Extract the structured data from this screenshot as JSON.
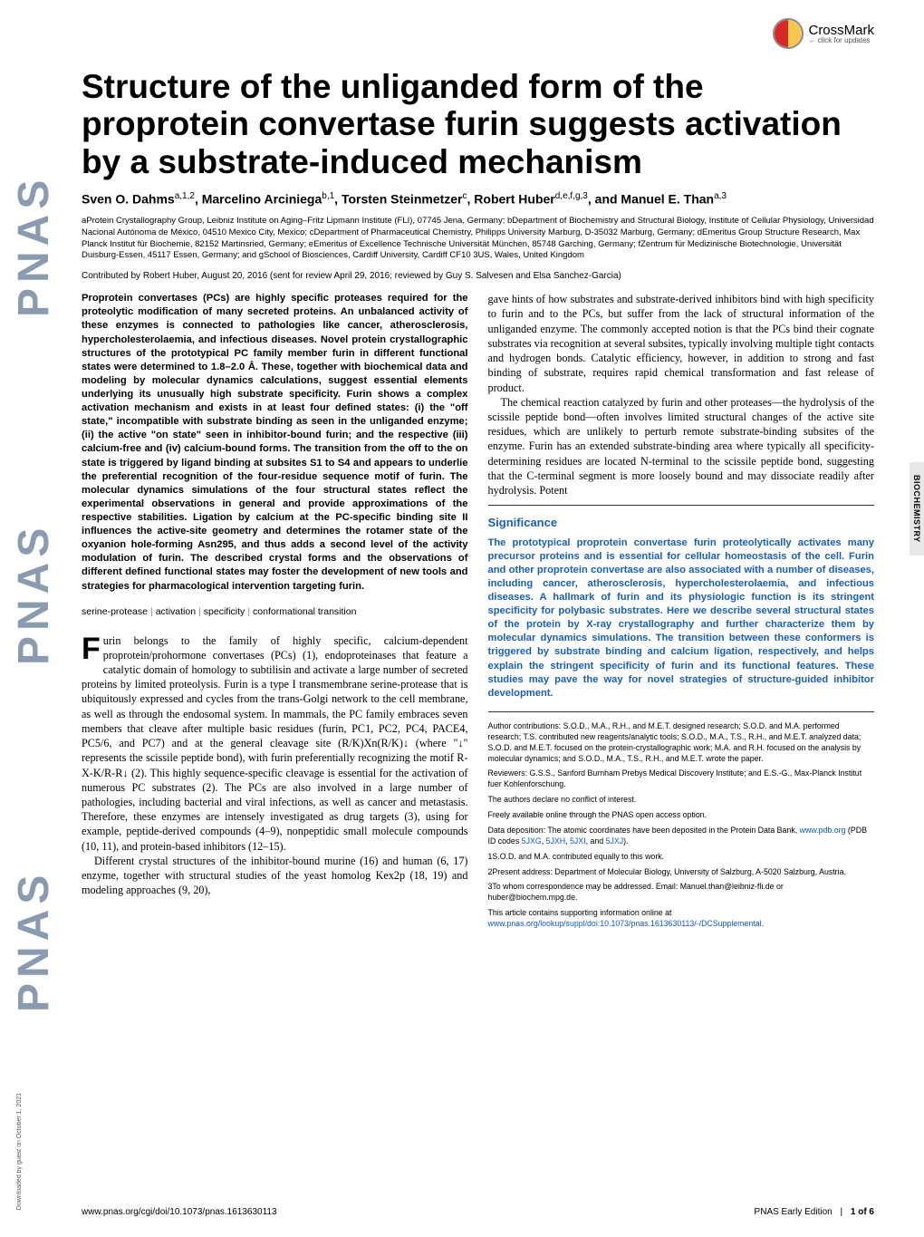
{
  "crossmark": {
    "title": "CrossMark",
    "subtitle": "← click for updates"
  },
  "sidebar_logo": "PNAS",
  "title": "Structure of the unliganded form of the proprotein convertase furin suggests activation by a substrate-induced mechanism",
  "authors_html": "Sven O. Dahms<sup>a,1,2</sup>, Marcelino Arciniega<sup>b,1</sup>, Torsten Steinmetzer<sup>c</sup>, Robert Huber<sup>d,e,f,g,3</sup>, and Manuel E. Than<sup>a,3</sup>",
  "affiliations": "aProtein Crystallography Group, Leibniz Institute on Aging–Fritz Lipmann Institute (FLI), 07745 Jena, Germany; bDepartment of Biochemistry and Structural Biology, Institute of Cellular Physiology, Universidad Nacional Autónoma de México, 04510 Mexico City, Mexico; cDepartment of Pharmaceutical Chemistry, Philipps University Marburg, D-35032 Marburg, Germany; dEmeritus Group Structure Research, Max Planck Institut für Biochemie, 82152 Martinsried, Germany; eEmeritus of Excellence Technische Universität München, 85748 Garching, Germany; fZentrum für Medizinische Biotechnologie, Universität Duisburg-Essen, 45117 Essen, Germany; and gSchool of Biosciences, Cardiff University, Cardiff CF10 3US, Wales, United Kingdom",
  "contributed": "Contributed by Robert Huber, August 20, 2016 (sent for review April 29, 2016; reviewed by Guy S. Salvesen and Elsa Sanchez-Garcia)",
  "abstract": "Proprotein convertases (PCs) are highly specific proteases required for the proteolytic modification of many secreted proteins. An unbalanced activity of these enzymes is connected to pathologies like cancer, atherosclerosis, hypercholesterolaemia, and infectious diseases. Novel protein crystallographic structures of the prototypical PC family member furin in different functional states were determined to 1.8–2.0 Å. These, together with biochemical data and modeling by molecular dynamics calculations, suggest essential elements underlying its unusually high substrate specificity. Furin shows a complex activation mechanism and exists in at least four defined states: (i) the \"off state,\" incompatible with substrate binding as seen in the unliganded enzyme; (ii) the active \"on state\" seen in inhibitor-bound furin; and the respective (iii) calcium-free and (iv) calcium-bound forms. The transition from the off to the on state is triggered by ligand binding at subsites S1 to S4 and appears to underlie the preferential recognition of the four-residue sequence motif of furin. The molecular dynamics simulations of the four structural states reflect the experimental observations in general and provide approximations of the respective stabilities. Ligation by calcium at the PC-specific binding site II influences the active-site geometry and determines the rotamer state of the oxyanion hole-forming Asn295, and thus adds a second level of the activity modulation of furin. The described crystal forms and the observations of different defined functional states may foster the development of new tools and strategies for pharmacological intervention targeting furin.",
  "keywords": [
    "serine-protease",
    "activation",
    "specificity",
    "conformational transition"
  ],
  "body_col1_p1_html": "<span class=\"dropcap\">F</span>urin belongs to the family of highly specific, calcium-dependent proprotein/prohormone convertases (PCs) (1), endoproteinases that feature a catalytic domain of homology to subtilisin and activate a large number of secreted proteins by limited proteolysis. Furin is a type I transmembrane serine-protease that is ubiquitously expressed and cycles from the trans-Golgi network to the cell membrane, as well as through the endosomal system. In mammals, the PC family embraces seven members that cleave after multiple basic residues (furin, PC1, PC2, PC4, PACE4, PC5/6, and PC7) and at the general cleavage site (R/K)Xn(R/K)↓ (where \"↓\" represents the scissile peptide bond), with furin preferentially recognizing the motif R-X-K/R-R↓ (2). This highly sequence-specific cleavage is essential for the activation of numerous PC substrates (2). The PCs are also involved in a large number of pathologies, including bacterial and viral infections, as well as cancer and metastasis. Therefore, these enzymes are intensely investigated as drug targets (3), using for example, peptide-derived compounds (4–9), nonpeptidic small molecule compounds (10, 11), and protein-based inhibitors (12–15).",
  "body_col1_p2": "Different crystal structures of the inhibitor-bound murine (16) and human (6, 17) enzyme, together with structural studies of the yeast homolog Kex2p (18, 19) and modeling approaches (9, 20),",
  "body_col2_intro": "gave hints of how substrates and substrate-derived inhibitors bind with high specificity to furin and to the PCs, but suffer from the lack of structural information of the unliganded enzyme. The commonly accepted notion is that the PCs bind their cognate substrates via recognition at several subsites, typically involving multiple tight contacts and hydrogen bonds. Catalytic efficiency, however, in addition to strong and fast binding of substrate, requires rapid chemical transformation and fast release of product.",
  "body_col2_intro_p2": "The chemical reaction catalyzed by furin and other proteases—the hydrolysis of the scissile peptide bond—often involves limited structural changes of the active site residues, which are unlikely to perturb remote substrate-binding subsites of the enzyme. Furin has an extended substrate-binding area where typically all specificity-determining residues are located N-terminal to the scissile peptide bond, suggesting that the C-terminal segment is more loosely bound and may dissociate readily after hydrolysis. Potent",
  "significance": {
    "title": "Significance",
    "text": "The prototypical proprotein convertase furin proteolytically activates many precursor proteins and is essential for cellular homeostasis of the cell. Furin and other proprotein convertase are also associated with a number of diseases, including cancer, atherosclerosis, hypercholesterolaemia, and infectious diseases. A hallmark of furin and its physiologic function is its stringent specificity for polybasic substrates. Here we describe several structural states of the protein by X-ray crystallography and further characterize them by molecular dynamics simulations. The transition between these conformers is triggered by substrate binding and calcium ligation, respectively, and helps explain the stringent specificity of furin and its functional features. These studies may pave the way for novel strategies of structure-guided inhibitor development."
  },
  "footnotes": {
    "author_contributions": "Author contributions: S.O.D., M.A., R.H., and M.E.T. designed research; S.O.D. and M.A. performed research; T.S. contributed new reagents/analytic tools; S.O.D., M.A., T.S., R.H., and M.E.T. analyzed data; S.O.D. and M.E.T. focused on the protein-crystallographic work; M.A. and R.H. focused on the analysis by molecular dynamics; and S.O.D., M.A., T.S., R.H., and M.E.T. wrote the paper.",
    "reviewers": "Reviewers: G.S.S., Sanford Burnham Prebys Medical Discovery Institute; and E.S.-G., Max-Planck Institut fuer Kohlenforschung.",
    "conflict": "The authors declare no conflict of interest.",
    "open_access": "Freely available online through the PNAS open access option.",
    "data_deposition_html": "Data deposition: The atomic coordinates have been deposited in the Protein Data Bank, <a href=\"#\">www.pdb.org</a> (PDB ID codes <a href=\"#\">5JXG</a>, <a href=\"#\">5JXH</a>, <a href=\"#\">5JXI</a>, and <a href=\"#\">5JXJ</a>).",
    "note1": "1S.O.D. and M.A. contributed equally to this work.",
    "note2": "2Present address: Department of Molecular Biology, University of Salzburg, A-5020 Salzburg, Austria.",
    "note3": "3To whom correspondence may be addressed. Email: Manuel.than@leibniz-fli.de or huber@biochem.mpg.de.",
    "supporting_html": "This article contains supporting information online at <a href=\"#\">www.pnas.org/lookup/suppl/doi:10.1073/pnas.1613630113/-/DCSupplemental</a>."
  },
  "section_tab": "BIOCHEMISTRY",
  "footer": {
    "left": "www.pnas.org/cgi/doi/10.1073/pnas.1613630113",
    "right_label": "PNAS Early Edition",
    "right_page": "1 of 6"
  },
  "download_note": "Downloaded by guest on October 1, 2021",
  "colors": {
    "link": "#1155cc",
    "significance": "#1a5fb4",
    "sidebar_logo": "#8a9bb0",
    "tab_bg": "#e8e8e8"
  }
}
